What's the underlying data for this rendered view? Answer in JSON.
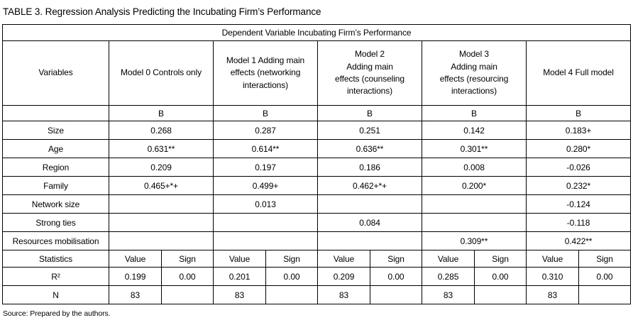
{
  "title": "TABLE 3. Regression Analysis Predicting the Incubating Firm’s Performance",
  "source_note": "Source: Prepared by the authors.",
  "table": {
    "spanning_header": "Dependent Variable Incubating Firm’s Performance",
    "variables_header": "Variables",
    "model_headers": [
      "Model 0 Controls only",
      "Model 1 Adding main\neffects (networking\ninteractions)",
      "Model 2\nAdding main\neffects (counseling\ninteractions)",
      "Model 3\nAdding main\neffects (resourcing\ninteractions)",
      "Model 4 Full model"
    ],
    "coefficient_label": "B",
    "variable_rows": [
      {
        "label": "Size",
        "values": [
          "0.268",
          "0.287",
          "0.251",
          "0.142",
          "0.183+"
        ]
      },
      {
        "label": "Age",
        "values": [
          "0.631**",
          "0.614**",
          "0.636**",
          "0.301**",
          "0.280*"
        ]
      },
      {
        "label": "Region",
        "values": [
          "0.209",
          "0.197",
          "0.186",
          "0.008",
          "-0.026"
        ]
      },
      {
        "label": "Family",
        "values": [
          "0.465+*+",
          "0.499+",
          "0.462+*+",
          "0.200*",
          "0.232*"
        ]
      },
      {
        "label": "Network size",
        "values": [
          "",
          "0.013",
          "",
          "",
          "-0.124"
        ]
      },
      {
        "label": "Strong ties",
        "values": [
          "",
          "",
          "0.084",
          "",
          "-0.118"
        ]
      },
      {
        "label": "Resources mobilisation",
        "values": [
          "",
          "",
          "",
          "0.309**",
          "0.422**"
        ]
      }
    ],
    "statistics_header": "Statistics",
    "value_label": "Value",
    "sign_label": "Sign",
    "statistic_rows": [
      {
        "label": "R²",
        "pairs": [
          [
            "0.199",
            "0.00"
          ],
          [
            "0.201",
            "0.00"
          ],
          [
            "0.209",
            "0.00"
          ],
          [
            "0.285",
            "0.00"
          ],
          [
            "0.310",
            "0.00"
          ]
        ]
      },
      {
        "label": "N",
        "pairs": [
          [
            "83",
            ""
          ],
          [
            "83",
            ""
          ],
          [
            "83",
            ""
          ],
          [
            "83",
            ""
          ],
          [
            "83",
            ""
          ]
        ]
      }
    ]
  }
}
